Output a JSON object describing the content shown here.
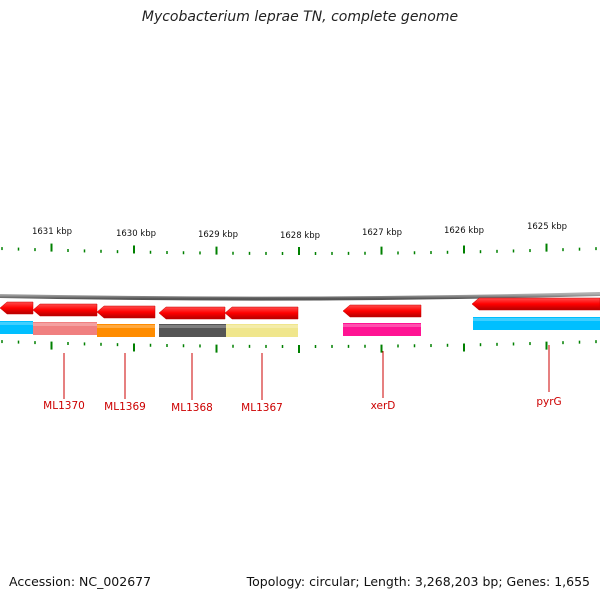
{
  "title": "Mycobacterium leprae TN, complete genome",
  "footer": {
    "accession": "Accession: NC_002677",
    "summary": "Topology: circular; Length: 3,268,203 bp; Genes: 1,655"
  },
  "ruler": {
    "labels": [
      "1631 kbp",
      "1630 kbp",
      "1629 kbp",
      "1628 kbp",
      "1627 kbp",
      "1626 kbp",
      "1625 kbp"
    ]
  },
  "genes": [
    {
      "label": "ML1370",
      "color": "#f08080"
    },
    {
      "label": "ML1369",
      "color": "#ff8c00"
    },
    {
      "label": "ML1368",
      "color": "#555555"
    },
    {
      "label": "ML1367",
      "color": "#f0e68c"
    },
    {
      "label": "xerD",
      "color": "#ff1493"
    },
    {
      "label": "pyrG",
      "color": "#00bfff"
    }
  ],
  "colors": {
    "cds_arrow": "#ff0000",
    "backbone": "#888888",
    "ticks": "#008000",
    "gene_label": "#cc0000",
    "unlabeled_gene": "#00bfff"
  }
}
